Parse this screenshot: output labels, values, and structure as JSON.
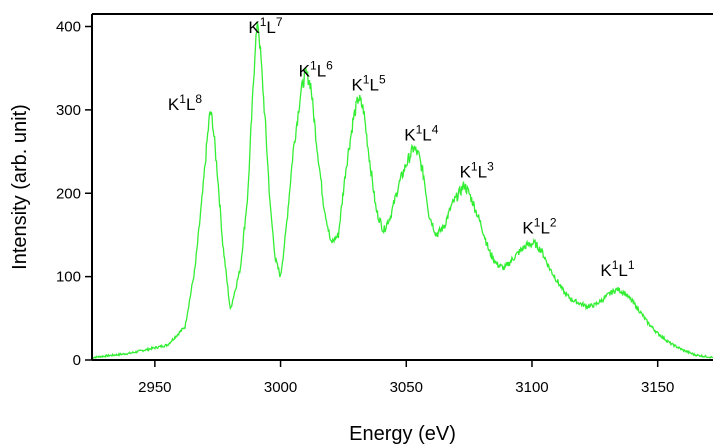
{
  "colors": {
    "series": "#33ee33",
    "axis": "#000000",
    "background": "#ffffff"
  },
  "chart_data": {
    "type": "line",
    "title": "",
    "xlabel": "Energy (eV)",
    "ylabel": "Intensity (arb. unit)",
    "xlim": [
      2925,
      3172
    ],
    "ylim": [
      0,
      415
    ],
    "xticks": [
      2950,
      3000,
      3050,
      3100,
      3150
    ],
    "yticks": [
      0,
      100,
      200,
      300,
      400
    ],
    "grid": false,
    "legend": "none",
    "series": [
      {
        "x": [
          2925,
          2940,
          2955,
          2962,
          2966,
          2969,
          2971,
          2972,
          2973,
          2975,
          2977,
          2980,
          2984,
          2987,
          2989,
          2990,
          2991,
          2992,
          2994,
          2996,
          2998,
          3000,
          3002,
          3005,
          3008,
          3010,
          3012,
          3014,
          3017,
          3020,
          3023,
          3026,
          3029,
          3031,
          3033,
          3035,
          3038,
          3041,
          3044,
          3047,
          3050,
          3053,
          3055,
          3057,
          3059,
          3062,
          3065,
          3068,
          3071,
          3073,
          3075,
          3077,
          3080,
          3083,
          3086,
          3089,
          3092,
          3095,
          3098,
          3101,
          3104,
          3107,
          3110,
          3113,
          3116,
          3119,
          3122,
          3125,
          3128,
          3131,
          3134,
          3137,
          3140,
          3143,
          3146,
          3150,
          3155,
          3160,
          3165,
          3172
        ],
        "y": [
          3,
          8,
          18,
          40,
          110,
          200,
          270,
          298,
          285,
          220,
          140,
          60,
          110,
          200,
          320,
          380,
          405,
          370,
          280,
          180,
          120,
          100,
          150,
          250,
          320,
          345,
          330,
          270,
          190,
          140,
          150,
          230,
          290,
          315,
          300,
          250,
          180,
          155,
          175,
          210,
          235,
          255,
          245,
          220,
          175,
          150,
          160,
          185,
          200,
          210,
          200,
          185,
          160,
          130,
          115,
          110,
          120,
          130,
          138,
          140,
          130,
          110,
          95,
          80,
          72,
          68,
          64,
          66,
          72,
          80,
          85,
          80,
          70,
          58,
          45,
          32,
          20,
          12,
          6,
          3
        ]
      }
    ],
    "annotations": [
      {
        "x": 2962,
        "y": 300,
        "base": "K",
        "sup1": "1",
        "letter": "L",
        "sup2": "8"
      },
      {
        "x": 2994,
        "y": 392,
        "base": "K",
        "sup1": "1",
        "letter": "L",
        "sup2": "7"
      },
      {
        "x": 3014,
        "y": 340,
        "base": "K",
        "sup1": "1",
        "letter": "L",
        "sup2": "6"
      },
      {
        "x": 3035,
        "y": 323,
        "base": "K",
        "sup1": "1",
        "letter": "L",
        "sup2": "5"
      },
      {
        "x": 3056,
        "y": 263,
        "base": "K",
        "sup1": "1",
        "letter": "L",
        "sup2": "4"
      },
      {
        "x": 3078,
        "y": 219,
        "base": "K",
        "sup1": "1",
        "letter": "L",
        "sup2": "3"
      },
      {
        "x": 3103,
        "y": 152,
        "base": "K",
        "sup1": "1",
        "letter": "L",
        "sup2": "2"
      },
      {
        "x": 3134,
        "y": 101,
        "base": "K",
        "sup1": "1",
        "letter": "L",
        "sup2": "1"
      }
    ]
  }
}
